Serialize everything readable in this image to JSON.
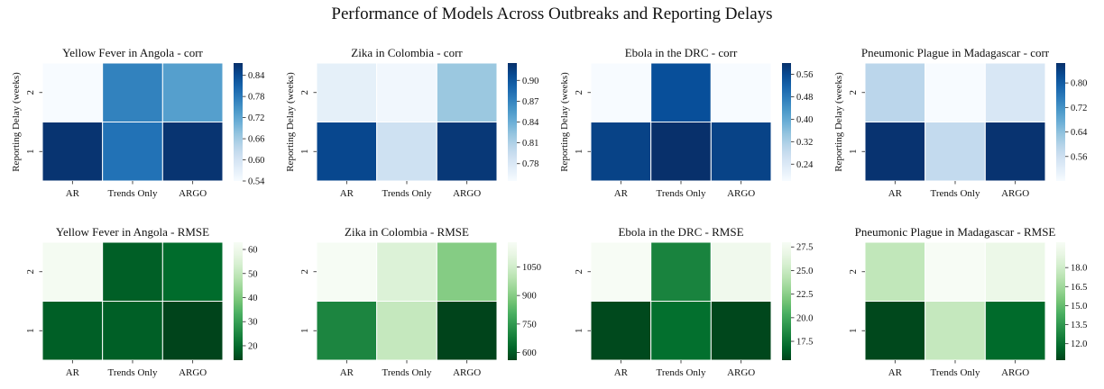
{
  "title": "Performance of Models Across Outbreaks and Reporting Delays",
  "chart_data": [
    {
      "type": "heatmap",
      "title": "Yellow Fever in Angola - corr",
      "metric": "corr",
      "colormap": "Blues",
      "xlabel": "",
      "ylabel": "Reporting Delay (weeks)",
      "x_categories": [
        "AR",
        "Trends Only",
        "ARGO"
      ],
      "y_categories": [
        "2",
        "1"
      ],
      "values": [
        [
          0.54,
          0.77,
          0.73
        ],
        [
          0.87,
          0.79,
          0.87
        ]
      ],
      "vmin": 0.54,
      "vmax": 0.875,
      "colorbar_ticks": [
        "0.84",
        "0.78",
        "0.72",
        "0.66",
        "0.60",
        "0.54"
      ]
    },
    {
      "type": "heatmap",
      "title": "Zika in Colombia - corr",
      "metric": "corr",
      "colormap": "Blues",
      "xlabel": "",
      "ylabel": "Reporting Delay (weeks)",
      "x_categories": [
        "AR",
        "Trends Only",
        "ARGO"
      ],
      "y_categories": [
        "2",
        "1"
      ],
      "values": [
        [
          0.77,
          0.76,
          0.82
        ],
        [
          0.91,
          0.79,
          0.92
        ]
      ],
      "vmin": 0.755,
      "vmax": 0.925,
      "colorbar_ticks": [
        "0.90",
        "0.87",
        "0.84",
        "0.81",
        "0.78"
      ]
    },
    {
      "type": "heatmap",
      "title": "Ebola in the DRC - corr",
      "metric": "corr",
      "colormap": "Blues",
      "xlabel": "",
      "ylabel": "Reporting Delay (weeks)",
      "x_categories": [
        "AR",
        "Trends Only",
        "ARGO"
      ],
      "y_categories": [
        "2",
        "1"
      ],
      "values": [
        [
          0.18,
          0.55,
          0.18
        ],
        [
          0.57,
          0.6,
          0.57
        ]
      ],
      "vmin": 0.18,
      "vmax": 0.6,
      "colorbar_ticks": [
        "0.56",
        "0.48",
        "0.40",
        "0.32",
        "0.24"
      ]
    },
    {
      "type": "heatmap",
      "title": "Pneumonic Plague in Madagascar - corr",
      "metric": "corr",
      "colormap": "Blues",
      "xlabel": "",
      "ylabel": "Reporting Delay (weeks)",
      "x_categories": [
        "AR",
        "Trends Only",
        "ARGO"
      ],
      "y_categories": [
        "2",
        "1"
      ],
      "values": [
        [
          0.59,
          0.48,
          0.54
        ],
        [
          0.86,
          0.58,
          0.86
        ]
      ],
      "vmin": 0.48,
      "vmax": 0.865,
      "colorbar_ticks": [
        "0.80",
        "0.72",
        "0.64",
        "0.56"
      ]
    },
    {
      "type": "heatmap",
      "title": "Yellow Fever in Angola - RMSE",
      "metric": "RMSE",
      "colormap": "Greens_r",
      "xlabel": "",
      "ylabel": "",
      "x_categories": [
        "AR",
        "Trends Only",
        "ARGO"
      ],
      "y_categories": [
        "2",
        "1"
      ],
      "values": [
        [
          62,
          18,
          20
        ],
        [
          18,
          18,
          14
        ]
      ],
      "vmin": 14,
      "vmax": 63,
      "colorbar_ticks": [
        "60",
        "50",
        "40",
        "30",
        "20"
      ]
    },
    {
      "type": "heatmap",
      "title": "Zika in Colombia - RMSE",
      "metric": "RMSE",
      "colormap": "Greens_r",
      "xlabel": "",
      "ylabel": "",
      "x_categories": [
        "AR",
        "Trends Only",
        "ARGO"
      ],
      "y_categories": [
        "2",
        "1"
      ],
      "values": [
        [
          1175,
          1080,
          900
        ],
        [
          700,
          1020,
          560
        ]
      ],
      "vmin": 560,
      "vmax": 1180,
      "colorbar_ticks": [
        "1050",
        "900",
        "750",
        "600"
      ]
    },
    {
      "type": "heatmap",
      "title": "Ebola in the DRC - RMSE",
      "metric": "RMSE",
      "colormap": "Greens_r",
      "xlabel": "",
      "ylabel": "",
      "x_categories": [
        "AR",
        "Trends Only",
        "ARGO"
      ],
      "y_categories": [
        "2",
        "1"
      ],
      "values": [
        [
          28.0,
          18.2,
          27.4
        ],
        [
          15.7,
          17.2,
          15.6
        ]
      ],
      "vmin": 15.5,
      "vmax": 28.0,
      "colorbar_ticks": [
        "27.5",
        "25.0",
        "22.5",
        "20.0",
        "17.5"
      ]
    },
    {
      "type": "heatmap",
      "title": "Pneumonic Plague in Madagascar - RMSE",
      "metric": "RMSE",
      "colormap": "Greens_r",
      "xlabel": "",
      "ylabel": "",
      "x_categories": [
        "AR",
        "Trends Only",
        "ARGO"
      ],
      "y_categories": [
        "2",
        "1"
      ],
      "values": [
        [
          17.5,
          20.0,
          19.3
        ],
        [
          10.8,
          17.6,
          11.8
        ]
      ],
      "vmin": 10.7,
      "vmax": 20.0,
      "colorbar_ticks": [
        "18.0",
        "16.5",
        "15.0",
        "13.5",
        "12.0"
      ]
    }
  ]
}
